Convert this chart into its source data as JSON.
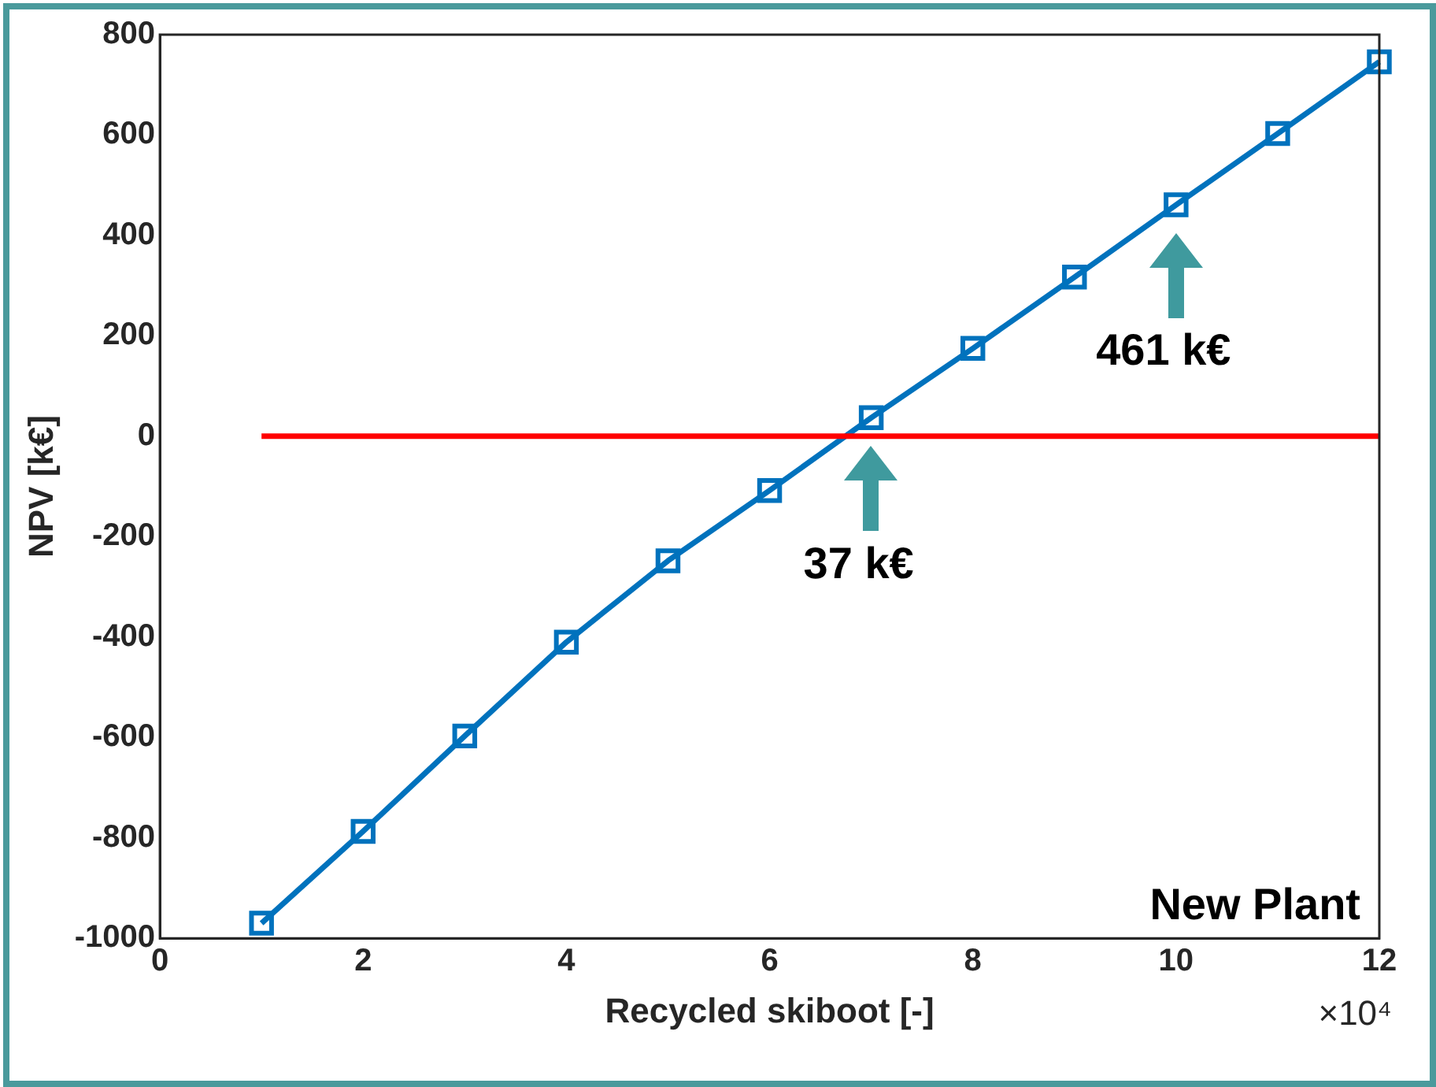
{
  "chart_data": {
    "type": "line",
    "xlabel": "Recycled skiboot [-]",
    "ylabel": "NPV [k€]",
    "xlim": [
      0,
      12
    ],
    "xticks": [
      0,
      2,
      4,
      6,
      8,
      10,
      12
    ],
    "ylim": [
      -1000,
      800
    ],
    "yticks": [
      -1000,
      -800,
      -600,
      -400,
      -200,
      0,
      200,
      400,
      600,
      800
    ],
    "grid": false,
    "legend": false,
    "series": [
      {
        "color": "#ff0000",
        "marker": "none",
        "x": [
          1,
          12
        ],
        "values": [
          0,
          0
        ]
      },
      {
        "color": "#0072bd",
        "marker": "square",
        "x": [
          1,
          2,
          3,
          4,
          5,
          6,
          7,
          8,
          9,
          10,
          11,
          12
        ],
        "values": [
          -970,
          -787,
          -597,
          -410,
          -248,
          -108,
          37,
          175,
          317,
          461,
          603,
          746
        ]
      }
    ],
    "annotations": [
      {
        "text": "37 k€",
        "x": 7,
        "y": 37
      },
      {
        "text": "461 k€",
        "x": 10,
        "y": 461
      },
      "New Plant",
      "×10⁴"
    ]
  }
}
